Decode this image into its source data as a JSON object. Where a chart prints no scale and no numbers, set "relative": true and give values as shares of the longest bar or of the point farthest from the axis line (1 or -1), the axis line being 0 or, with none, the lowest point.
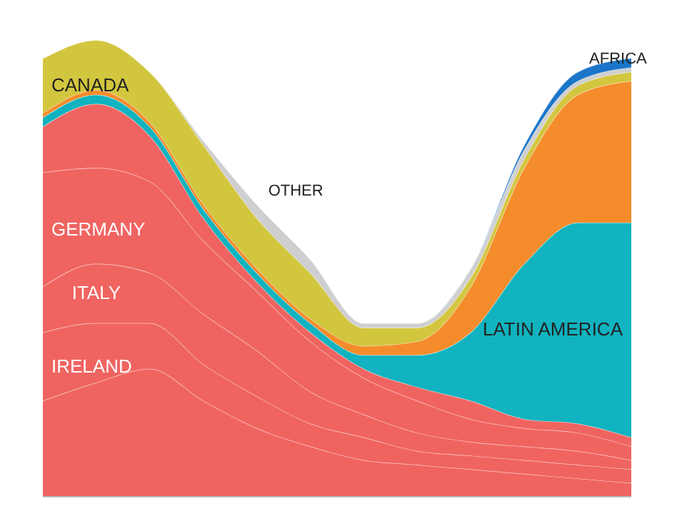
{
  "chart_data": {
    "type": "area",
    "stacked": true,
    "relative": true,
    "categories": [
      null,
      null,
      null,
      null,
      null,
      null,
      null,
      null,
      null,
      null,
      null,
      null
    ],
    "series": [
      {
        "color": "#ef6461",
        "values": [
          0.21,
          0.25,
          0.28,
          0.21,
          0.15,
          0.11,
          0.08,
          0.07,
          0.06,
          0.05,
          0.04,
          0.03
        ]
      },
      {
        "name": "IRELAND",
        "color": "#ef6461",
        "values": [
          0.15,
          0.13,
          0.1,
          0.08,
          0.07,
          0.05,
          0.05,
          0.03,
          0.03,
          0.03,
          0.03,
          0.03
        ]
      },
      {
        "name": "ITALY",
        "color": "#ef6461",
        "values": [
          0.1,
          0.13,
          0.11,
          0.11,
          0.1,
          0.07,
          0.05,
          0.04,
          0.03,
          0.03,
          0.03,
          0.02
        ]
      },
      {
        "name": "GERMANY",
        "color": "#ef6461",
        "values": [
          0.25,
          0.21,
          0.2,
          0.16,
          0.13,
          0.11,
          0.08,
          0.07,
          0.05,
          0.04,
          0.04,
          0.03
        ]
      },
      {
        "color": "#ef6461",
        "values": [
          0.1,
          0.14,
          0.1,
          0.05,
          0.02,
          0.02,
          0.02,
          0.03,
          0.04,
          0.02,
          0.02,
          0.02
        ]
      },
      {
        "name": "LATIN AMERICA",
        "color": "#10b3bf",
        "values": [
          0.02,
          0.02,
          0.02,
          0.02,
          0.02,
          0.02,
          0.03,
          0.07,
          0.15,
          0.34,
          0.44,
          0.47
        ]
      },
      {
        "color": "#f58c2b",
        "values": [
          0.01,
          0.01,
          0.01,
          0.01,
          0.01,
          0.01,
          0.02,
          0.03,
          0.1,
          0.21,
          0.28,
          0.31
        ]
      },
      {
        "name": "CANADA",
        "color": "#d3c63f",
        "values": [
          0.12,
          0.11,
          0.11,
          0.13,
          0.11,
          0.1,
          0.04,
          0.03,
          0.02,
          0.02,
          0.02,
          0.02
        ]
      },
      {
        "name": "OTHER",
        "color": "#cfcfd2",
        "values": [
          0,
          0,
          0,
          0.01,
          0.03,
          0.03,
          0.01,
          0.01,
          0.02,
          0.02,
          0.01,
          0.01
        ]
      },
      {
        "name": "AFRICA",
        "color": "#1a75c9",
        "values": [
          0,
          0,
          0,
          0,
          0,
          0,
          0,
          0,
          0,
          0.01,
          0.02,
          0.02
        ]
      }
    ]
  }
}
